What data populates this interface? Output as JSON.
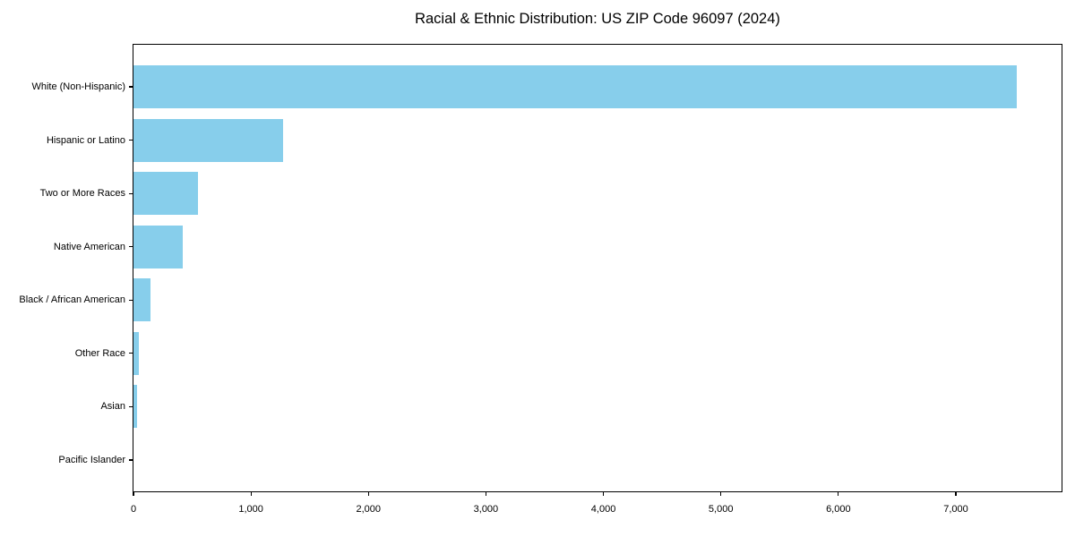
{
  "chart_data": {
    "type": "bar",
    "orientation": "horizontal",
    "title": "Racial & Ethnic Distribution: US ZIP Code 96097 (2024)",
    "categories": [
      "White (Non-Hispanic)",
      "Hispanic or Latino",
      "Two or More Races",
      "Native American",
      "Black / African American",
      "Other Race",
      "Asian",
      "Pacific Islander"
    ],
    "values": [
      7520,
      1275,
      550,
      420,
      145,
      45,
      30,
      0
    ],
    "xlabel": "",
    "ylabel": "",
    "xlim": [
      0,
      7900
    ],
    "xticks": [
      0,
      1000,
      2000,
      3000,
      4000,
      5000,
      6000,
      7000
    ],
    "xtick_labels": [
      "0",
      "1,000",
      "2,000",
      "3,000",
      "4,000",
      "5,000",
      "6,000",
      "7,000"
    ],
    "bar_color": "#87CEEB",
    "grid": false,
    "legend_position": "none"
  }
}
